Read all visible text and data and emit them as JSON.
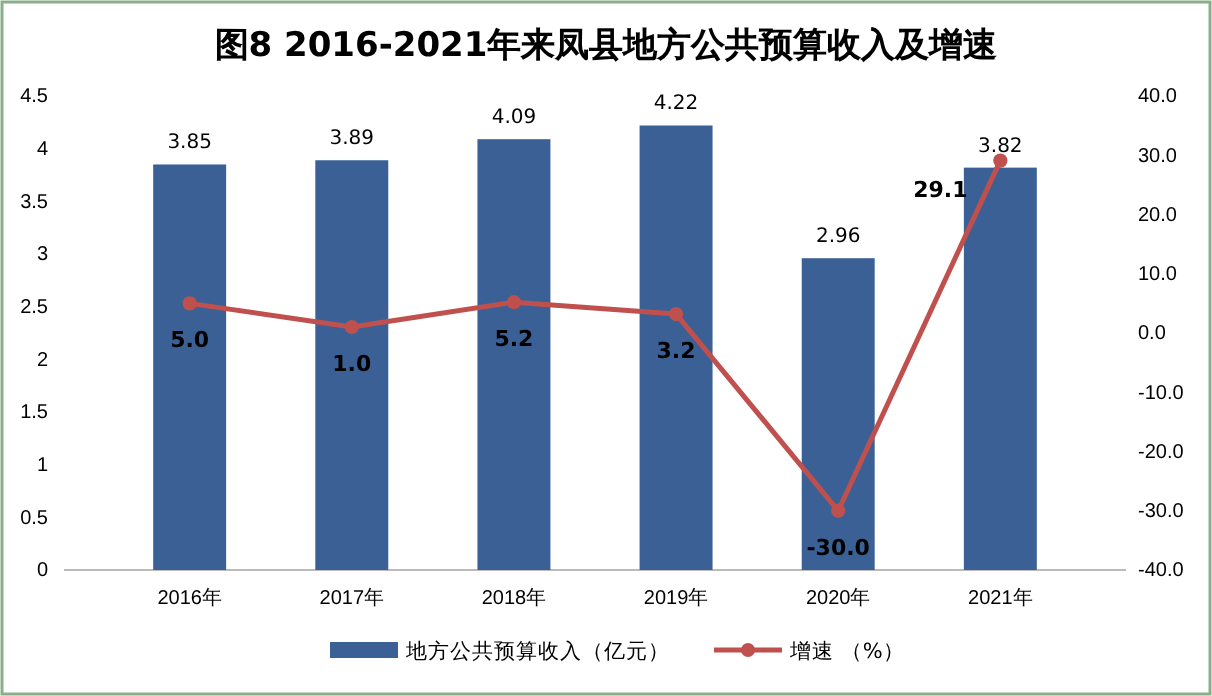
{
  "chart_data": {
    "type": "bar",
    "title": "图8  2016-2021年来凤县地方公共预算收入及增速",
    "categories": [
      "2016年",
      "2017年",
      "2018年",
      "2019年",
      "2020年",
      "2021年"
    ],
    "series": [
      {
        "name": "地方公共预算收入（亿元）",
        "color": "#3a6095",
        "values": [
          3.85,
          3.89,
          4.09,
          4.22,
          2.96,
          3.82
        ],
        "value_labels": [
          "3.85",
          "3.89",
          "4.09",
          "4.22",
          "2.96",
          "3.82"
        ]
      },
      {
        "name": "增速 （%）",
        "type": "line",
        "axis": "y2",
        "color": "#c0504d",
        "marker": "circle",
        "values": [
          5.0,
          1.0,
          5.2,
          3.2,
          -30.0,
          29.1
        ],
        "value_labels": [
          "5.0",
          "1.0",
          "5.2",
          "3.2",
          "-30.0",
          "29.1"
        ]
      }
    ],
    "ylim": [
      0,
      4.5
    ],
    "yticks": [
      0,
      0.5,
      1,
      1.5,
      2,
      2.5,
      3,
      3.5,
      4,
      4.5
    ],
    "y2lim": [
      -40,
      40
    ],
    "y2ticks": [
      {
        "value": -40,
        "label": "-40.0"
      },
      {
        "value": -30,
        "label": "-30.0"
      },
      {
        "value": -20,
        "label": "-20.0"
      },
      {
        "value": -10,
        "label": "-10.0"
      },
      {
        "value": 0,
        "label": "0.0"
      },
      {
        "value": 10,
        "label": "10.0"
      },
      {
        "value": 20,
        "label": "20.0"
      },
      {
        "value": 30,
        "label": "30.0"
      },
      {
        "value": 40,
        "label": "40.0"
      }
    ],
    "grid": false,
    "legend": "bottom"
  }
}
